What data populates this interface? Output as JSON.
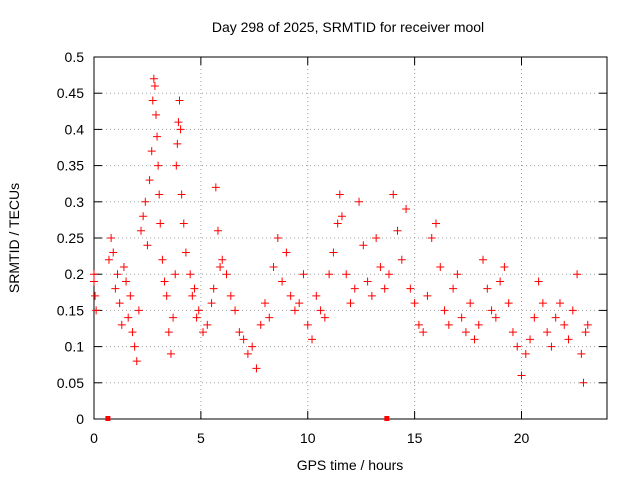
{
  "chart_data": {
    "type": "scatter",
    "title": "Day 298 of 2025, SRMTID for receiver mool",
    "xlabel": "GPS time / hours",
    "ylabel": "SRMTID / TECUs",
    "xlim": [
      0,
      24
    ],
    "ylim": [
      0,
      0.5
    ],
    "xticks": [
      {
        "value": 0,
        "label": "0"
      },
      {
        "value": 5,
        "label": "5"
      },
      {
        "value": 10,
        "label": "10"
      },
      {
        "value": 15,
        "label": "15"
      },
      {
        "value": 20,
        "label": "20"
      }
    ],
    "yticks": [
      {
        "value": 0,
        "label": "0"
      },
      {
        "value": 0.05,
        "label": "0.05"
      },
      {
        "value": 0.1,
        "label": "0.1"
      },
      {
        "value": 0.15,
        "label": "0.15"
      },
      {
        "value": 0.2,
        "label": "0.2"
      },
      {
        "value": 0.25,
        "label": "0.25"
      },
      {
        "value": 0.3,
        "label": "0.3"
      },
      {
        "value": 0.35,
        "label": "0.35"
      },
      {
        "value": 0.4,
        "label": "0.4"
      },
      {
        "value": 0.45,
        "label": "0.45"
      },
      {
        "value": 0.5,
        "label": "0.5"
      }
    ],
    "grid": true,
    "series": [
      {
        "name": "SRMTID",
        "marker": "plus",
        "color": "#ff0000",
        "points": [
          [
            0.0,
            0.19
          ],
          [
            0.0,
            0.2
          ],
          [
            0.05,
            0.17
          ],
          [
            0.1,
            0.15
          ],
          [
            0.7,
            0.22
          ],
          [
            0.8,
            0.25
          ],
          [
            0.9,
            0.23
          ],
          [
            1.0,
            0.18
          ],
          [
            1.1,
            0.2
          ],
          [
            1.2,
            0.16
          ],
          [
            1.3,
            0.13
          ],
          [
            1.4,
            0.21
          ],
          [
            1.5,
            0.19
          ],
          [
            1.6,
            0.14
          ],
          [
            1.7,
            0.17
          ],
          [
            1.8,
            0.12
          ],
          [
            1.9,
            0.1
          ],
          [
            2.0,
            0.08
          ],
          [
            2.1,
            0.15
          ],
          [
            2.2,
            0.26
          ],
          [
            2.3,
            0.28
          ],
          [
            2.4,
            0.3
          ],
          [
            2.5,
            0.24
          ],
          [
            2.6,
            0.33
          ],
          [
            2.7,
            0.37
          ],
          [
            2.75,
            0.44
          ],
          [
            2.8,
            0.47
          ],
          [
            2.85,
            0.46
          ],
          [
            2.9,
            0.42
          ],
          [
            2.95,
            0.39
          ],
          [
            3.0,
            0.35
          ],
          [
            3.05,
            0.31
          ],
          [
            3.1,
            0.27
          ],
          [
            3.2,
            0.22
          ],
          [
            3.3,
            0.19
          ],
          [
            3.4,
            0.17
          ],
          [
            3.5,
            0.12
          ],
          [
            3.6,
            0.09
          ],
          [
            3.7,
            0.14
          ],
          [
            3.8,
            0.2
          ],
          [
            3.85,
            0.35
          ],
          [
            3.9,
            0.38
          ],
          [
            3.95,
            0.41
          ],
          [
            4.0,
            0.44
          ],
          [
            4.05,
            0.4
          ],
          [
            4.1,
            0.31
          ],
          [
            4.2,
            0.27
          ],
          [
            4.3,
            0.23
          ],
          [
            4.5,
            0.2
          ],
          [
            4.6,
            0.17
          ],
          [
            4.7,
            0.18
          ],
          [
            4.8,
            0.14
          ],
          [
            4.9,
            0.15
          ],
          [
            5.1,
            0.12
          ],
          [
            5.3,
            0.13
          ],
          [
            5.5,
            0.16
          ],
          [
            5.6,
            0.18
          ],
          [
            5.7,
            0.32
          ],
          [
            5.8,
            0.26
          ],
          [
            5.9,
            0.21
          ],
          [
            6.0,
            0.22
          ],
          [
            6.2,
            0.2
          ],
          [
            6.4,
            0.17
          ],
          [
            6.6,
            0.15
          ],
          [
            6.8,
            0.12
          ],
          [
            7.0,
            0.11
          ],
          [
            7.2,
            0.09
          ],
          [
            7.4,
            0.1
          ],
          [
            7.6,
            0.07
          ],
          [
            7.8,
            0.13
          ],
          [
            8.0,
            0.16
          ],
          [
            8.2,
            0.14
          ],
          [
            8.4,
            0.21
          ],
          [
            8.6,
            0.25
          ],
          [
            8.8,
            0.19
          ],
          [
            9.0,
            0.23
          ],
          [
            9.2,
            0.17
          ],
          [
            9.4,
            0.15
          ],
          [
            9.6,
            0.16
          ],
          [
            9.8,
            0.2
          ],
          [
            10.0,
            0.13
          ],
          [
            10.2,
            0.11
          ],
          [
            10.4,
            0.17
          ],
          [
            10.6,
            0.15
          ],
          [
            10.8,
            0.14
          ],
          [
            11.0,
            0.2
          ],
          [
            11.2,
            0.23
          ],
          [
            11.4,
            0.27
          ],
          [
            11.5,
            0.31
          ],
          [
            11.6,
            0.28
          ],
          [
            11.8,
            0.2
          ],
          [
            12.0,
            0.16
          ],
          [
            12.2,
            0.18
          ],
          [
            12.4,
            0.3
          ],
          [
            12.6,
            0.24
          ],
          [
            12.8,
            0.19
          ],
          [
            13.0,
            0.17
          ],
          [
            13.2,
            0.25
          ],
          [
            13.4,
            0.21
          ],
          [
            13.6,
            0.18
          ],
          [
            13.8,
            0.2
          ],
          [
            14.0,
            0.31
          ],
          [
            14.2,
            0.26
          ],
          [
            14.4,
            0.22
          ],
          [
            14.6,
            0.29
          ],
          [
            14.8,
            0.18
          ],
          [
            15.0,
            0.16
          ],
          [
            15.2,
            0.13
          ],
          [
            15.4,
            0.12
          ],
          [
            15.6,
            0.17
          ],
          [
            15.8,
            0.25
          ],
          [
            16.0,
            0.27
          ],
          [
            16.2,
            0.21
          ],
          [
            16.4,
            0.15
          ],
          [
            16.6,
            0.13
          ],
          [
            16.8,
            0.18
          ],
          [
            17.0,
            0.2
          ],
          [
            17.2,
            0.14
          ],
          [
            17.4,
            0.12
          ],
          [
            17.6,
            0.16
          ],
          [
            17.8,
            0.11
          ],
          [
            18.0,
            0.13
          ],
          [
            18.2,
            0.22
          ],
          [
            18.4,
            0.18
          ],
          [
            18.6,
            0.15
          ],
          [
            18.8,
            0.14
          ],
          [
            19.0,
            0.19
          ],
          [
            19.2,
            0.21
          ],
          [
            19.4,
            0.16
          ],
          [
            19.6,
            0.12
          ],
          [
            19.8,
            0.1
          ],
          [
            20.0,
            0.06
          ],
          [
            20.2,
            0.09
          ],
          [
            20.4,
            0.11
          ],
          [
            20.6,
            0.14
          ],
          [
            20.8,
            0.19
          ],
          [
            21.0,
            0.16
          ],
          [
            21.2,
            0.12
          ],
          [
            21.4,
            0.1
          ],
          [
            21.6,
            0.14
          ],
          [
            21.8,
            0.16
          ],
          [
            22.0,
            0.13
          ],
          [
            22.2,
            0.11
          ],
          [
            22.4,
            0.15
          ],
          [
            22.6,
            0.2
          ],
          [
            22.8,
            0.09
          ],
          [
            22.9,
            0.05
          ],
          [
            23.0,
            0.12
          ],
          [
            23.1,
            0.13
          ],
          [
            0.65,
            0.0
          ],
          [
            13.7,
            0.0
          ]
        ]
      }
    ]
  }
}
